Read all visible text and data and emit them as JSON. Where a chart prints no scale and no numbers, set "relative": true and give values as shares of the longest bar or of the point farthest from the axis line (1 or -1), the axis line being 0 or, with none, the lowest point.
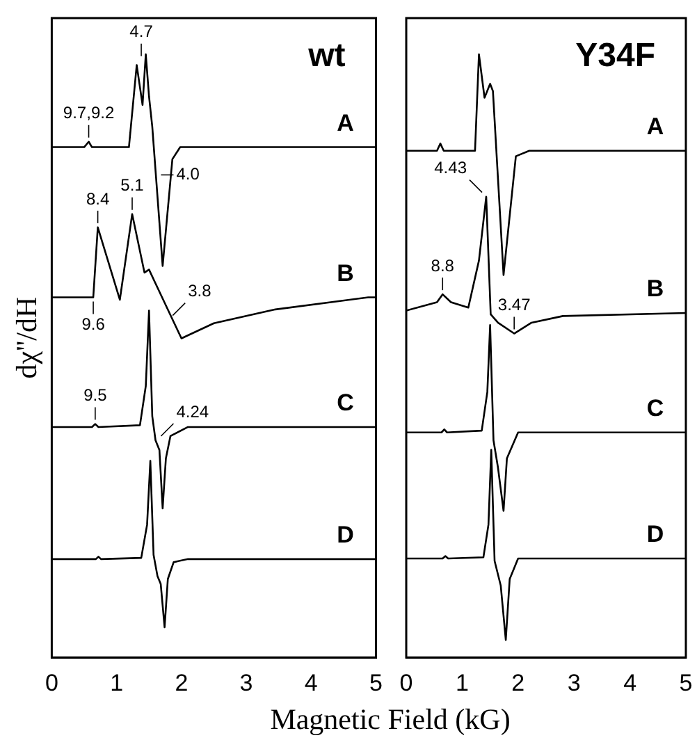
{
  "chart_data": [
    {
      "type": "line",
      "title": "wt",
      "ylabel": "dχ''/dH",
      "xlabel": "Magnetic Field (kG)",
      "relative": true,
      "xlim": [
        0,
        5
      ],
      "xticks": [
        0,
        1,
        2,
        3,
        4,
        5
      ],
      "grid": false,
      "legend": false,
      "marker": "none",
      "line_style": "solid",
      "tick_labels": "x",
      "series": [
        {
          "name": "A",
          "color": "#000000",
          "x": [
            0,
            0.5,
            0.57,
            0.62,
            1.19,
            1.31,
            1.4,
            1.45,
            1.5,
            1.55,
            1.71,
            1.86,
            1.98,
            5
          ],
          "values": [
            0.846,
            0.846,
            0.855,
            0.846,
            0.846,
            0.982,
            0.916,
            1.0,
            0.93,
            0.88,
            0.649,
            0.826,
            0.846,
            0.846
          ]
        },
        {
          "name": "B",
          "color": "#000000",
          "x": [
            0,
            0.64,
            0.71,
            1.05,
            1.24,
            1.43,
            1.5,
            1.6,
            2.0,
            2.5,
            3.45,
            4.88,
            5
          ],
          "values": [
            0.597,
            0.597,
            0.713,
            0.593,
            0.735,
            0.638,
            0.643,
            0.62,
            0.529,
            0.554,
            0.577,
            0.597,
            0.597
          ]
        },
        {
          "name": "C",
          "color": "#000000",
          "x": [
            0,
            0.62,
            0.67,
            0.72,
            1.36,
            1.45,
            1.5,
            1.55,
            1.6,
            1.66,
            1.71,
            1.76,
            1.83,
            2.1,
            5
          ],
          "values": [
            0.382,
            0.382,
            0.387,
            0.382,
            0.385,
            0.45,
            0.575,
            0.4,
            0.36,
            0.344,
            0.247,
            0.33,
            0.367,
            0.382,
            0.382
          ]
        },
        {
          "name": "D",
          "color": "#000000",
          "x": [
            0,
            0.68,
            0.72,
            0.76,
            1.38,
            1.47,
            1.52,
            1.57,
            1.63,
            1.68,
            1.74,
            1.79,
            1.88,
            2.1,
            5
          ],
          "values": [
            0.163,
            0.163,
            0.167,
            0.163,
            0.165,
            0.22,
            0.326,
            0.17,
            0.135,
            0.122,
            0.05,
            0.13,
            0.158,
            0.163,
            0.163
          ]
        }
      ],
      "annotations": [
        {
          "text": "9.7,9.2",
          "x": 0.57,
          "y": 0.855
        },
        {
          "text": "4.7",
          "x": 1.38,
          "y": 0.99
        },
        {
          "text": "4.0",
          "x": 1.62,
          "y": 0.8
        },
        {
          "text": "9.6",
          "x": 0.64,
          "y": 0.597
        },
        {
          "text": "8.4",
          "x": 0.71,
          "y": 0.713
        },
        {
          "text": "5.1",
          "x": 1.24,
          "y": 0.735
        },
        {
          "text": "3.8",
          "x": 1.8,
          "y": 0.56
        },
        {
          "text": "9.5",
          "x": 0.67,
          "y": 0.387
        },
        {
          "text": "4.24",
          "x": 1.62,
          "y": 0.36
        }
      ]
    },
    {
      "type": "line",
      "title": "Y34F",
      "relative": true,
      "xlim": [
        0,
        5
      ],
      "xticks": [
        0,
        1,
        2,
        3,
        4,
        5
      ],
      "grid": false,
      "legend": false,
      "marker": "none",
      "line_style": "solid",
      "tick_labels": "x",
      "series": [
        {
          "name": "A",
          "color": "#000000",
          "x": [
            0,
            0.55,
            0.61,
            0.67,
            1.23,
            1.3,
            1.4,
            1.5,
            1.55,
            1.74,
            1.96,
            2.2,
            5
          ],
          "values": [
            0.84,
            0.84,
            0.852,
            0.84,
            0.84,
            1.0,
            0.928,
            0.951,
            0.939,
            0.634,
            0.831,
            0.84,
            0.84
          ]
        },
        {
          "name": "B",
          "color": "#000000",
          "x": [
            0,
            0.55,
            0.65,
            0.8,
            1.11,
            1.3,
            1.43,
            1.51,
            1.64,
            1.93,
            2.24,
            2.8,
            5
          ],
          "values": [
            0.575,
            0.589,
            0.602,
            0.589,
            0.58,
            0.658,
            0.764,
            0.569,
            0.555,
            0.537,
            0.555,
            0.566,
            0.571
          ]
        },
        {
          "name": "C",
          "color": "#000000",
          "x": [
            0,
            0.63,
            0.68,
            0.73,
            1.35,
            1.45,
            1.5,
            1.56,
            1.64,
            1.74,
            1.8,
            2.0,
            5
          ],
          "values": [
            0.373,
            0.373,
            0.378,
            0.373,
            0.376,
            0.44,
            0.551,
            0.36,
            0.315,
            0.243,
            0.33,
            0.373,
            0.373
          ]
        },
        {
          "name": "D",
          "color": "#000000",
          "x": [
            0,
            0.65,
            0.7,
            0.75,
            1.38,
            1.47,
            1.52,
            1.58,
            1.69,
            1.78,
            1.85,
            2.0,
            5
          ],
          "values": [
            0.164,
            0.164,
            0.168,
            0.164,
            0.166,
            0.22,
            0.344,
            0.16,
            0.119,
            0.029,
            0.13,
            0.164,
            0.164
          ]
        }
      ],
      "annotations": [
        {
          "text": "4.43",
          "x": 1.43,
          "y": 0.764
        },
        {
          "text": "8.8",
          "x": 0.65,
          "y": 0.602
        },
        {
          "text": "3.47",
          "x": 1.93,
          "y": 0.537
        }
      ]
    }
  ]
}
